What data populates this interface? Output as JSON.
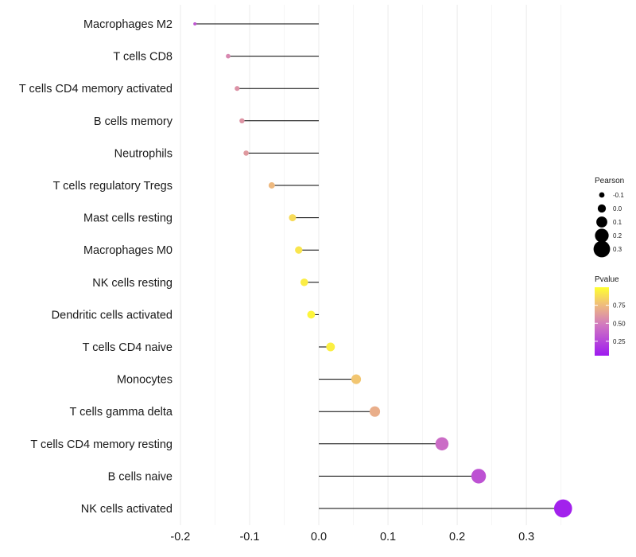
{
  "chart_data": {
    "type": "lollipop",
    "title": "",
    "xlabel": "",
    "ylabel": "",
    "xlim": [
      -0.2,
      0.36
    ],
    "x_ticks": [
      -0.2,
      -0.1,
      0.0,
      0.1,
      0.2,
      0.3
    ],
    "x_tick_labels": [
      "-0.2",
      "-0.1",
      "0.0",
      "0.1",
      "0.2",
      "0.3"
    ],
    "grid": true,
    "legend_position": "right",
    "categories": [
      "Macrophages M2",
      "T cells CD8",
      "T cells CD4 memory activated",
      "B cells memory",
      "Neutrophils",
      "T cells regulatory  Tregs ",
      "Mast cells resting",
      "Macrophages M0",
      "NK cells resting",
      "Dendritic cells activated",
      "T cells CD4 naive",
      "Monocytes",
      "T cells gamma delta",
      "T cells CD4 memory resting",
      "B cells naive",
      "NK cells activated"
    ],
    "pearson": [
      -0.179,
      -0.131,
      -0.118,
      -0.111,
      -0.105,
      -0.068,
      -0.038,
      -0.029,
      -0.021,
      -0.011,
      0.017,
      0.054,
      0.081,
      0.178,
      0.231,
      0.353
    ],
    "pvalue": [
      0.31,
      0.52,
      0.56,
      0.57,
      0.59,
      0.73,
      0.86,
      0.9,
      0.93,
      0.96,
      0.94,
      0.78,
      0.68,
      0.4,
      0.29,
      0.08
    ],
    "legend_pearson": {
      "title": "Pearson",
      "values": [
        -0.1,
        0.0,
        0.1,
        0.2,
        0.3
      ],
      "labels": [
        "-0.1",
        "0.0",
        "0.1",
        "0.2",
        "0.3"
      ]
    },
    "legend_pvalue": {
      "title": "Pvalue",
      "range": [
        0.05,
        1.0
      ],
      "ticks": [
        0.75,
        0.5,
        0.25
      ],
      "tick_labels": [
        "0.75",
        "0.50",
        "0.25"
      ],
      "colors": [
        "#9E1AF0",
        "#D178C0",
        "#F0BE7A",
        "#FFFF30"
      ]
    }
  }
}
